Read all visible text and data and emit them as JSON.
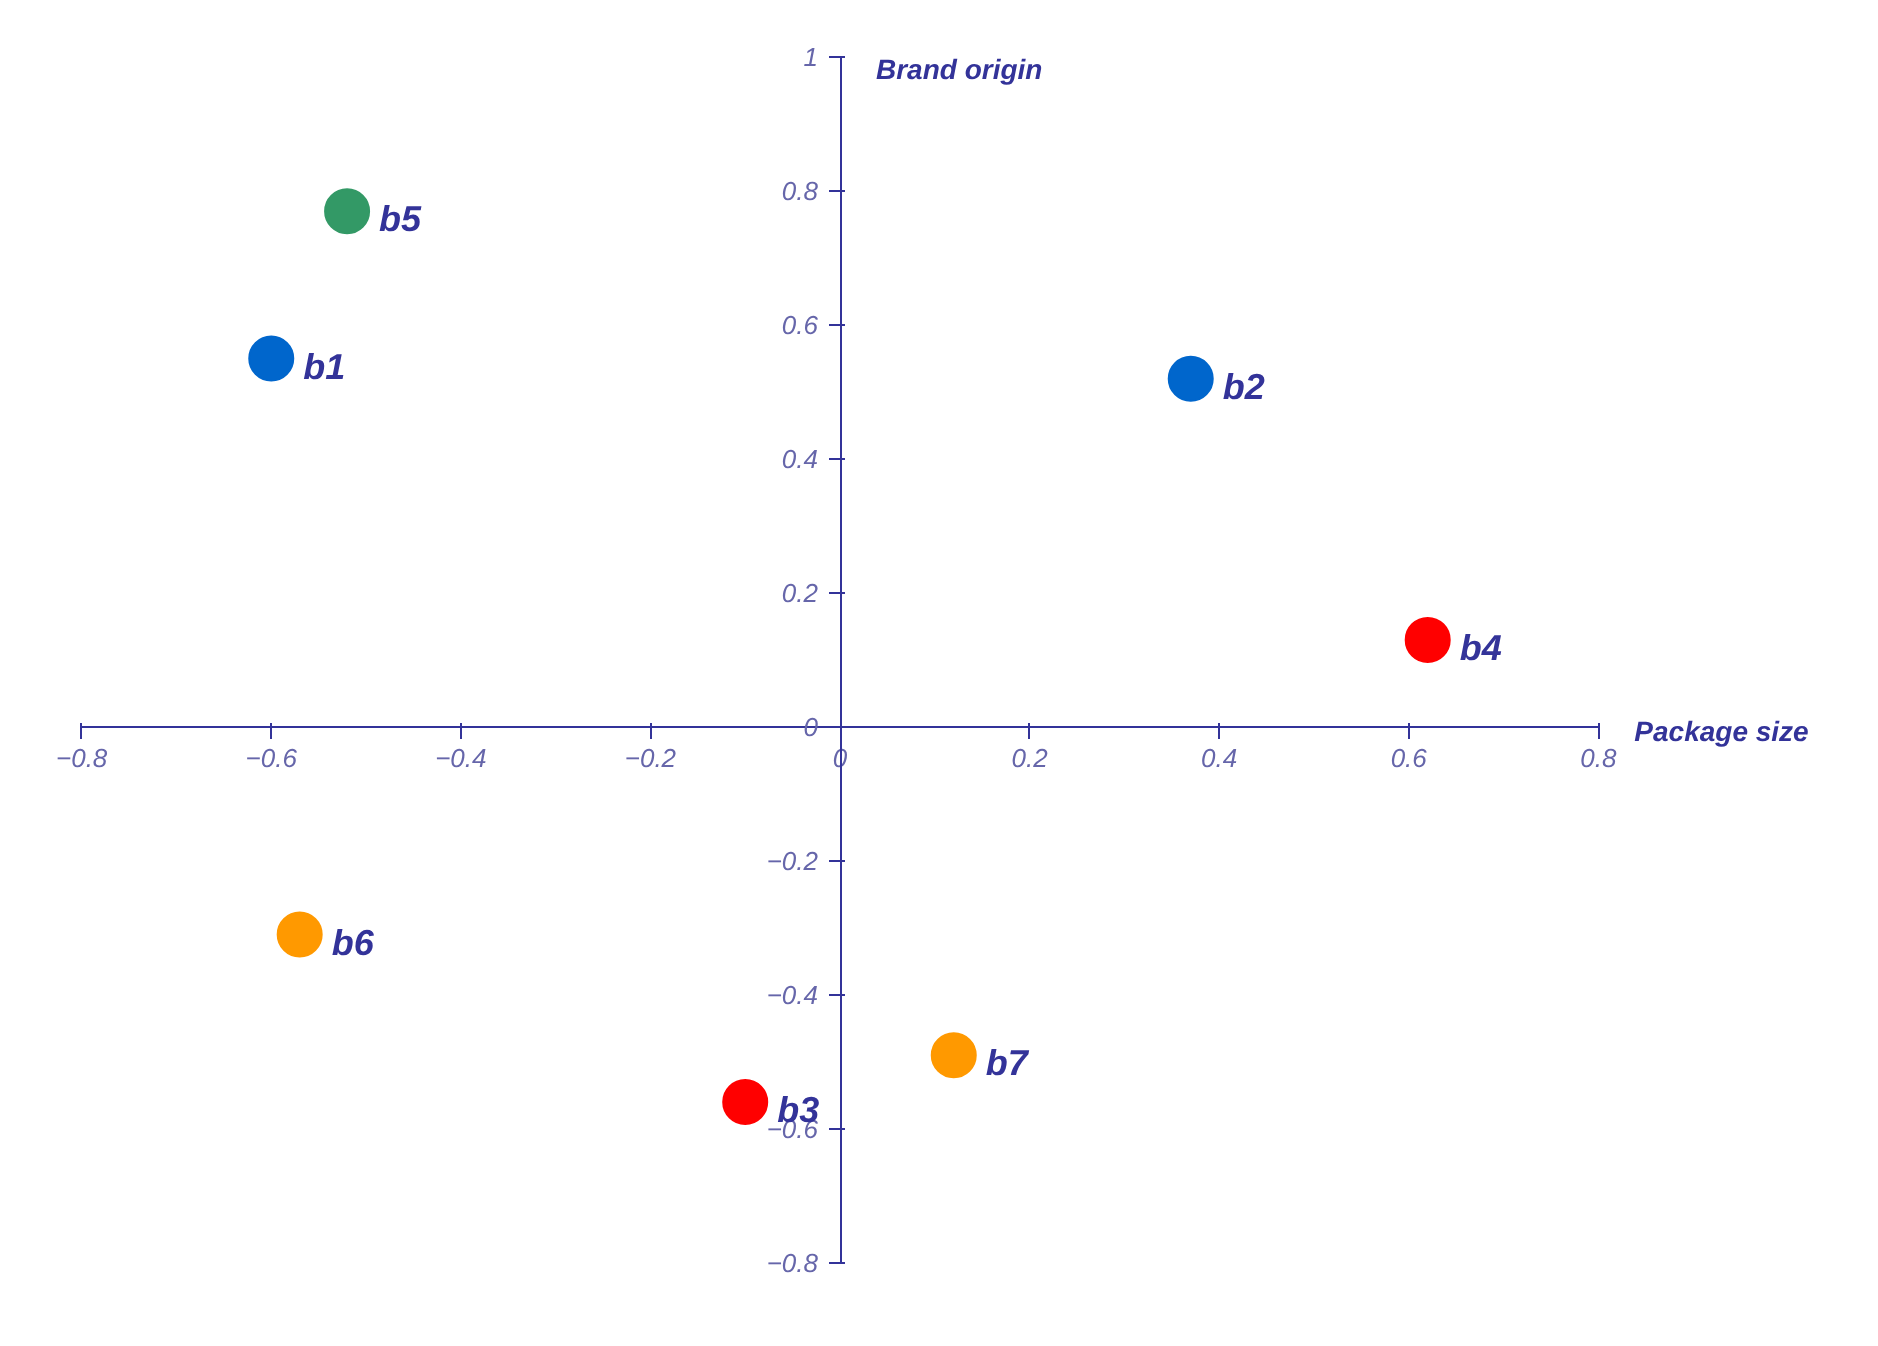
{
  "chart_data": {
    "type": "scatter",
    "xlabel": "Package size",
    "ylabel": "Brand origin",
    "xlim": [
      -0.8,
      0.8
    ],
    "ylim": [
      -0.8,
      1
    ],
    "xticks": [
      -0.8,
      -0.6,
      -0.4,
      -0.2,
      0,
      0.2,
      0.4,
      0.6,
      0.8
    ],
    "yticks": [
      -0.8,
      -0.6,
      -0.4,
      -0.2,
      0,
      0.2,
      0.4,
      0.6,
      0.8,
      1
    ],
    "legend": false,
    "marker": "circle",
    "series": [
      {
        "name": "b1",
        "color": "#0066cc",
        "x": [
          -0.6
        ],
        "values": [
          0.55
        ]
      },
      {
        "name": "b2",
        "color": "#0066cc",
        "x": [
          0.37
        ],
        "values": [
          0.52
        ]
      },
      {
        "name": "b3",
        "color": "#ff0000",
        "x": [
          -0.1
        ],
        "values": [
          -0.56
        ]
      },
      {
        "name": "b4",
        "color": "#ff0000",
        "x": [
          0.62
        ],
        "values": [
          0.13
        ]
      },
      {
        "name": "b5",
        "color": "#339966",
        "x": [
          -0.52
        ],
        "values": [
          0.77
        ]
      },
      {
        "name": "b6",
        "color": "#ff9900",
        "x": [
          -0.57
        ],
        "values": [
          -0.31
        ]
      },
      {
        "name": "b7",
        "color": "#ff9900",
        "x": [
          0.12
        ],
        "values": [
          -0.49
        ]
      }
    ]
  }
}
